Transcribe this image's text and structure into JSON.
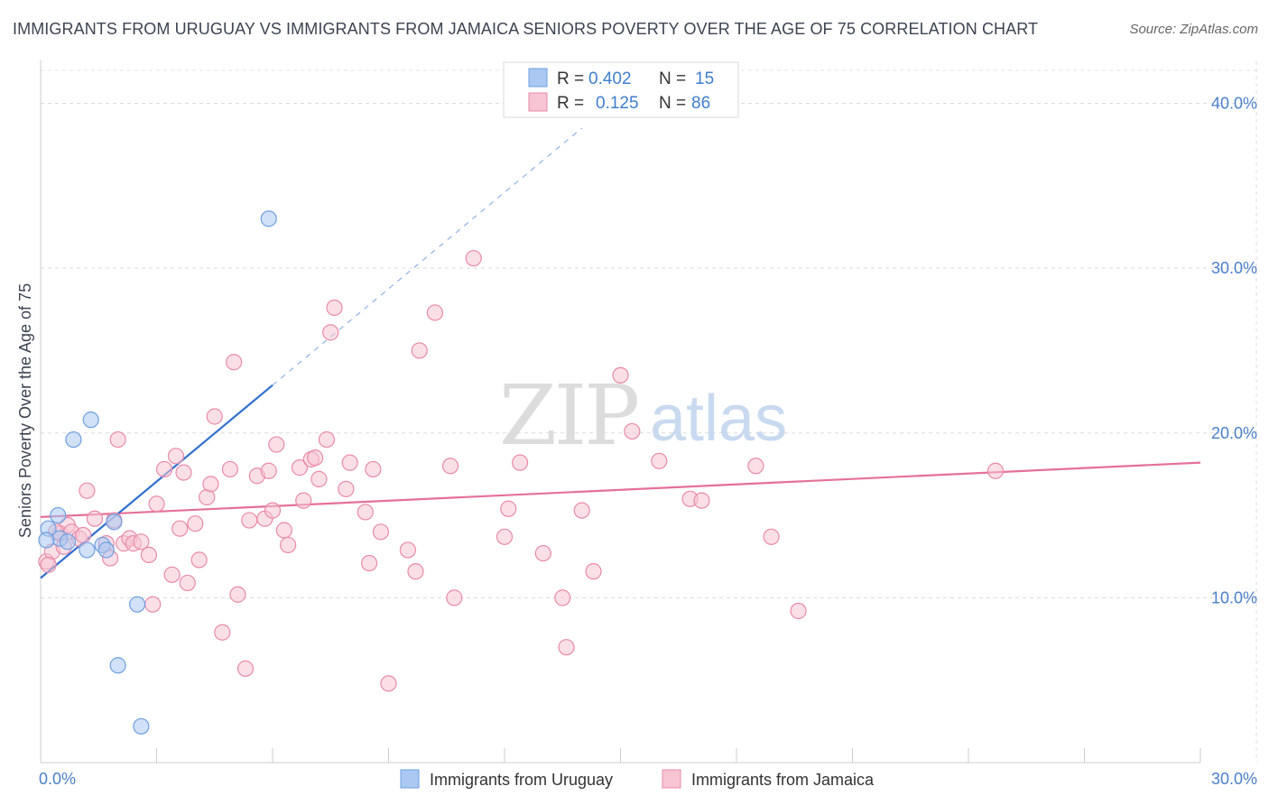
{
  "title": "IMMIGRANTS FROM URUGUAY VS IMMIGRANTS FROM JAMAICA SENIORS POVERTY OVER THE AGE OF 75 CORRELATION CHART",
  "source": "Source: ZipAtlas.com",
  "watermark": {
    "part1": "ZIP",
    "part2": "atlas"
  },
  "chart_data": {
    "type": "scatter",
    "ylabel": "Seniors Poverty Over the Age of 75",
    "xlabel": "",
    "xlim": [
      0,
      30
    ],
    "ylim": [
      0,
      42
    ],
    "x_tick_labels": [
      {
        "value": 0,
        "label": "0.0%"
      },
      {
        "value": 30,
        "label": "30.0%"
      }
    ],
    "y_tick_labels": [
      {
        "value": 10,
        "label": "10.0%"
      },
      {
        "value": 20,
        "label": "20.0%"
      },
      {
        "value": 30,
        "label": "30.0%"
      },
      {
        "value": 40,
        "label": "40.0%"
      }
    ],
    "legend": [
      {
        "r_label": "R =",
        "r": "0.402",
        "n_label": "N =",
        "n": "15"
      },
      {
        "r_label": "R =",
        "r": "0.125",
        "n_label": "N =",
        "n": "86"
      }
    ],
    "series": [
      {
        "name": "Immigrants from Uruguay",
        "color": "#6f9fe0",
        "fill": "#aac8f2",
        "trend": {
          "x0": 0.0,
          "y0": 11.2,
          "x1": 6.0,
          "y1": 22.9,
          "dash_to_x": 14.0,
          "dash_to_y": 38.5,
          "color": "#2f6fd0"
        },
        "points": [
          [
            0.2,
            14.2
          ],
          [
            0.45,
            15.0
          ],
          [
            0.5,
            13.6
          ],
          [
            0.7,
            13.4
          ],
          [
            0.85,
            19.6
          ],
          [
            1.2,
            12.9
          ],
          [
            1.3,
            20.8
          ],
          [
            1.6,
            13.2
          ],
          [
            1.7,
            12.9
          ],
          [
            1.9,
            14.6
          ],
          [
            2.5,
            9.6
          ],
          [
            2.0,
            5.9
          ],
          [
            2.6,
            2.2
          ],
          [
            5.9,
            33.0
          ],
          [
            0.15,
            13.5
          ]
        ]
      },
      {
        "name": "Immigrants from Jamaica",
        "color": "#e98aa8",
        "fill": "#f7c4d3",
        "trend": {
          "x0": 0.0,
          "y0": 14.9,
          "x1": 30.0,
          "y1": 18.2,
          "color": "#e5709a"
        },
        "points": [
          [
            0.15,
            12.2
          ],
          [
            0.3,
            12.8
          ],
          [
            0.5,
            13.9
          ],
          [
            0.7,
            14.4
          ],
          [
            0.8,
            14.0
          ],
          [
            1.0,
            13.6
          ],
          [
            1.2,
            16.5
          ],
          [
            1.4,
            14.8
          ],
          [
            1.7,
            13.3
          ],
          [
            1.8,
            12.4
          ],
          [
            1.9,
            14.7
          ],
          [
            2.0,
            19.6
          ],
          [
            2.15,
            13.3
          ],
          [
            2.3,
            13.6
          ],
          [
            2.4,
            13.3
          ],
          [
            2.6,
            13.4
          ],
          [
            2.8,
            12.6
          ],
          [
            2.9,
            9.6
          ],
          [
            3.0,
            15.7
          ],
          [
            3.2,
            17.8
          ],
          [
            3.4,
            11.4
          ],
          [
            3.5,
            18.6
          ],
          [
            3.6,
            14.2
          ],
          [
            3.7,
            17.6
          ],
          [
            3.8,
            10.9
          ],
          [
            4.0,
            14.5
          ],
          [
            4.1,
            12.3
          ],
          [
            4.3,
            16.1
          ],
          [
            4.4,
            16.9
          ],
          [
            4.5,
            21.0
          ],
          [
            4.7,
            7.9
          ],
          [
            4.9,
            17.8
          ],
          [
            5.0,
            24.3
          ],
          [
            5.1,
            10.2
          ],
          [
            5.3,
            5.7
          ],
          [
            5.4,
            14.7
          ],
          [
            5.6,
            17.4
          ],
          [
            5.8,
            14.8
          ],
          [
            5.9,
            17.7
          ],
          [
            6.0,
            15.3
          ],
          [
            6.1,
            19.3
          ],
          [
            6.3,
            14.1
          ],
          [
            6.4,
            13.2
          ],
          [
            6.7,
            17.9
          ],
          [
            6.8,
            15.9
          ],
          [
            7.0,
            18.4
          ],
          [
            7.1,
            18.5
          ],
          [
            7.2,
            17.2
          ],
          [
            7.4,
            19.6
          ],
          [
            7.5,
            26.1
          ],
          [
            7.6,
            27.6
          ],
          [
            7.9,
            16.6
          ],
          [
            8.0,
            18.2
          ],
          [
            8.4,
            15.2
          ],
          [
            8.5,
            12.1
          ],
          [
            8.6,
            17.8
          ],
          [
            8.8,
            14.0
          ],
          [
            9.0,
            4.8
          ],
          [
            9.5,
            12.9
          ],
          [
            9.7,
            11.6
          ],
          [
            9.8,
            25.0
          ],
          [
            10.2,
            27.3
          ],
          [
            10.6,
            18.0
          ],
          [
            10.7,
            10.0
          ],
          [
            11.2,
            30.6
          ],
          [
            12.0,
            13.7
          ],
          [
            12.1,
            15.4
          ],
          [
            12.4,
            18.2
          ],
          [
            13.0,
            12.7
          ],
          [
            13.5,
            10.0
          ],
          [
            13.6,
            7.0
          ],
          [
            14.0,
            15.3
          ],
          [
            14.3,
            11.6
          ],
          [
            15.0,
            23.5
          ],
          [
            15.3,
            20.1
          ],
          [
            16.0,
            18.3
          ],
          [
            16.8,
            16.0
          ],
          [
            17.1,
            15.9
          ],
          [
            18.5,
            18.0
          ],
          [
            18.9,
            13.7
          ],
          [
            19.6,
            9.2
          ],
          [
            24.7,
            17.7
          ],
          [
            0.2,
            12.0
          ],
          [
            0.4,
            14.0
          ],
          [
            0.6,
            13.1
          ],
          [
            1.1,
            13.8
          ]
        ]
      }
    ]
  },
  "bottom_legend": [
    {
      "label": "Immigrants from Uruguay",
      "fill": "#aac8f2",
      "stroke": "#6f9fe0"
    },
    {
      "label": "Immigrants from Jamaica",
      "fill": "#f7c4d3",
      "stroke": "#e98aa8"
    }
  ]
}
